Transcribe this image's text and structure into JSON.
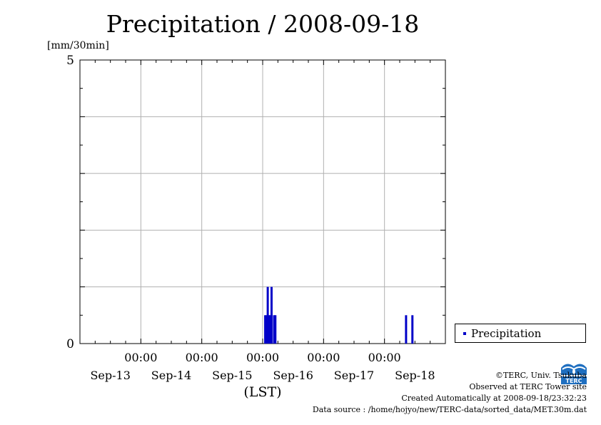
{
  "chart_data": {
    "type": "bar",
    "title": "Precipitation / 2008-09-18",
    "ylabel": "[mm/30min]",
    "xlabel": "(LST)",
    "ylim": [
      0,
      5
    ],
    "y_tick_labels": [
      "0",
      "5"
    ],
    "x_range_hours": [
      -12,
      132
    ],
    "x_ticks": [
      {
        "time": "00:00",
        "date": "Sep-14",
        "hour": 12
      },
      {
        "time": "00:00",
        "date": "Sep-15",
        "hour": 36
      },
      {
        "time": "00:00",
        "date": "Sep-16",
        "hour": 60
      },
      {
        "time": "00:00",
        "date": "Sep-17",
        "hour": 84
      },
      {
        "time": "00:00",
        "date": "Sep-18",
        "hour": 108
      }
    ],
    "date_labels": [
      "Sep-13",
      "Sep-14",
      "Sep-15",
      "Sep-16",
      "Sep-17",
      "Sep-18"
    ],
    "series": [
      {
        "name": "Precipitation",
        "color": "#0000c8",
        "points": [
          {
            "hour": 61.0,
            "value": 0.5
          },
          {
            "hour": 61.5,
            "value": 0.5
          },
          {
            "hour": 62.0,
            "value": 1.0
          },
          {
            "hour": 62.5,
            "value": 0.5
          },
          {
            "hour": 63.0,
            "value": 0.5
          },
          {
            "hour": 63.5,
            "value": 1.0
          },
          {
            "hour": 64.5,
            "value": 0.5
          },
          {
            "hour": 65.0,
            "value": 0.5
          },
          {
            "hour": 116.5,
            "value": 0.5
          },
          {
            "hour": 119.0,
            "value": 0.5
          }
        ]
      }
    ],
    "grid": true,
    "legend_position": "right"
  },
  "credits": {
    "copyright": "©TERC, Univ. Tsukuba",
    "site": "Observed at TERC Tower site",
    "created": "Created Automatically at 2008-09-18/23:32:23",
    "source": "Data source : /home/hojyo/new/TERC-data/sorted_data/MET.30m.dat"
  },
  "logo": {
    "text": "TERC",
    "color": "#1f6fc0"
  }
}
